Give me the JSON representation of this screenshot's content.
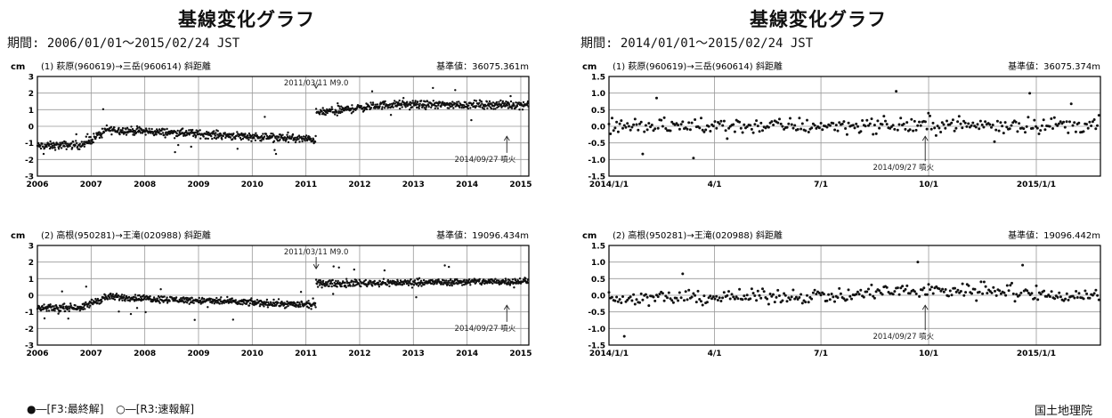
{
  "panels": [
    {
      "title": "基線変化グラフ",
      "period": "期間: 2006/01/01～2015/02/24 JST"
    },
    {
      "title": "基線変化グラフ",
      "period": "期間: 2014/01/01～2015/02/24 JST"
    }
  ],
  "legend": {
    "final": "●―[F3:最終解]",
    "rapid": "○―[R3:速報解]"
  },
  "organization": "国土地理院",
  "colors": {
    "data": "#111111",
    "grid": "#999999"
  },
  "chart_data": [
    {
      "type": "scatter",
      "unit": "cm",
      "header": "(1) 萩原(960619)→三岳(960614)  斜距離",
      "reference": "基準値：36075.361m",
      "xlim": [
        2006,
        2015.15
      ],
      "ylim": [
        -3,
        3
      ],
      "xticks": [
        "2006",
        "2007",
        "2008",
        "2009",
        "2010",
        "2011",
        "2012",
        "2013",
        "2014",
        "2015"
      ],
      "xtick_values": [
        2006,
        2007,
        2008,
        2009,
        2010,
        2011,
        2012,
        2013,
        2014,
        2015
      ],
      "yticks": [
        "3",
        "2",
        "1",
        "0",
        "-1",
        "-2",
        "-3"
      ],
      "ytick_values": [
        3,
        2,
        1,
        0,
        -1,
        -2,
        -3
      ],
      "annotations": [
        {
          "text": "2011/03/11 M9.0",
          "x": 2011.19,
          "y": 3.0,
          "arrow_to": 2.3,
          "pos": "above"
        },
        {
          "text": "2014/09/27 噴火",
          "x": 2014.74,
          "y": -1.6,
          "arrow_to": -0.6,
          "pos": "below"
        }
      ],
      "segments": [
        {
          "x0": 2006.0,
          "x1": 2006.9,
          "y0": -1.2,
          "y1": -1.1,
          "scatter": 0.35
        },
        {
          "x0": 2006.9,
          "x1": 2007.3,
          "y0": -1.0,
          "y1": -0.2,
          "scatter": 0.4
        },
        {
          "x0": 2007.3,
          "x1": 2011.19,
          "y0": -0.2,
          "y1": -0.8,
          "scatter": 0.35
        },
        {
          "x0": 2011.19,
          "x1": 2012.5,
          "y0": 0.8,
          "y1": 1.3,
          "scatter": 0.35
        },
        {
          "x0": 2012.5,
          "x1": 2015.15,
          "y0": 1.3,
          "y1": 1.3,
          "scatter": 0.35
        }
      ]
    },
    {
      "type": "scatter",
      "unit": "cm",
      "header": "(1) 萩原(960619)→三岳(960614)  斜距離",
      "reference": "基準値：36075.374m",
      "xlim": [
        2014.0,
        2015.15
      ],
      "ylim": [
        -1.5,
        1.5
      ],
      "xticks": [
        "2014/1/1",
        "4/1",
        "7/1",
        "10/1",
        "2015/1/1"
      ],
      "xtick_values": [
        2014.0,
        2014.247,
        2014.496,
        2014.748,
        2015.0
      ],
      "yticks": [
        "1.5",
        "1.0",
        "0.5",
        "0.0",
        "-0.5",
        "-1.0",
        "-1.5"
      ],
      "ytick_values": [
        1.5,
        1.0,
        0.5,
        0.0,
        -0.5,
        -1.0,
        -1.5
      ],
      "annotations": [
        {
          "text": "2014/09/27 噴火",
          "x": 2014.74,
          "y": -1.05,
          "arrow_to": -0.3,
          "pos": "below"
        }
      ],
      "segments": [
        {
          "x0": 2014.0,
          "x1": 2015.15,
          "y0": 0.0,
          "y1": 0.05,
          "scatter": 0.35
        }
      ]
    },
    {
      "type": "scatter",
      "unit": "cm",
      "header": "(2) 高根(950281)→王滝(020988)  斜距離",
      "reference": "基準値：19096.434m",
      "xlim": [
        2006,
        2015.15
      ],
      "ylim": [
        -3,
        3
      ],
      "xticks": [
        "2006",
        "2007",
        "2008",
        "2009",
        "2010",
        "2011",
        "2012",
        "2013",
        "2014",
        "2015"
      ],
      "xtick_values": [
        2006,
        2007,
        2008,
        2009,
        2010,
        2011,
        2012,
        2013,
        2014,
        2015
      ],
      "yticks": [
        "3",
        "2",
        "1",
        "0",
        "-1",
        "-2",
        "-3"
      ],
      "ytick_values": [
        3,
        2,
        1,
        0,
        -1,
        -2,
        -3
      ],
      "annotations": [
        {
          "text": "2011/03/11 M9.0",
          "x": 2011.19,
          "y": 3.0,
          "arrow_to": 1.6,
          "pos": "above"
        },
        {
          "text": "2014/09/27 噴火",
          "x": 2014.74,
          "y": -1.6,
          "arrow_to": -0.6,
          "pos": "below"
        }
      ],
      "segments": [
        {
          "x0": 2006.0,
          "x1": 2006.9,
          "y0": -0.8,
          "y1": -0.7,
          "scatter": 0.3
        },
        {
          "x0": 2006.9,
          "x1": 2007.3,
          "y0": -0.6,
          "y1": -0.1,
          "scatter": 0.35
        },
        {
          "x0": 2007.3,
          "x1": 2011.19,
          "y0": -0.1,
          "y1": -0.6,
          "scatter": 0.3
        },
        {
          "x0": 2011.19,
          "x1": 2015.15,
          "y0": 0.7,
          "y1": 0.85,
          "scatter": 0.3
        }
      ]
    },
    {
      "type": "scatter",
      "unit": "cm",
      "header": "(2) 高根(950281)→王滝(020988)  斜距離",
      "reference": "基準値：19096.442m",
      "xlim": [
        2014.0,
        2015.15
      ],
      "ylim": [
        -1.5,
        1.5
      ],
      "xticks": [
        "2014/1/1",
        "4/1",
        "7/1",
        "10/1",
        "2015/1/1"
      ],
      "xtick_values": [
        2014.0,
        2014.247,
        2014.496,
        2014.748,
        2015.0
      ],
      "yticks": [
        "1.5",
        "1.0",
        "0.5",
        "0.0",
        "-0.5",
        "-1.0",
        "-1.5"
      ],
      "ytick_values": [
        1.5,
        1.0,
        0.5,
        0.0,
        -0.5,
        -1.0,
        -1.5
      ],
      "annotations": [
        {
          "text": "2014/09/27 噴火",
          "x": 2014.74,
          "y": -1.05,
          "arrow_to": -0.3,
          "pos": "below"
        }
      ],
      "segments": [
        {
          "x0": 2014.0,
          "x1": 2014.6,
          "y0": -0.1,
          "y1": 0.0,
          "scatter": 0.3
        },
        {
          "x0": 2014.6,
          "x1": 2014.95,
          "y0": 0.1,
          "y1": 0.2,
          "scatter": 0.35
        },
        {
          "x0": 2014.95,
          "x1": 2015.15,
          "y0": 0.0,
          "y1": 0.0,
          "scatter": 0.3
        }
      ]
    }
  ]
}
